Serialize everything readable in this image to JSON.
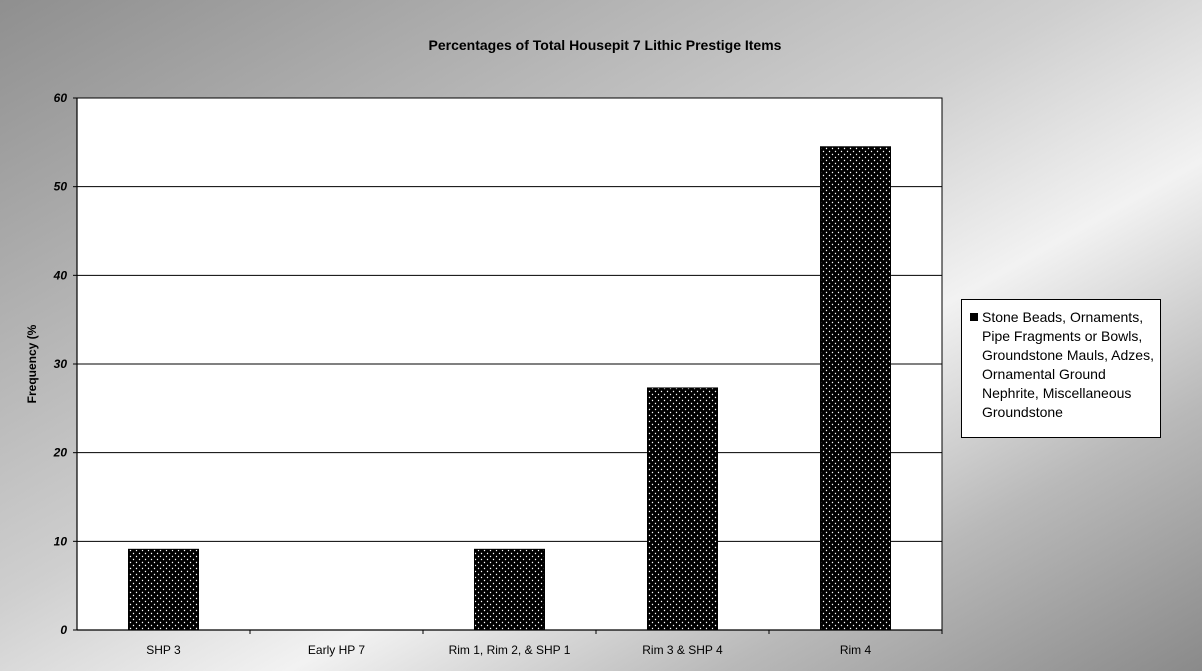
{
  "chart_data": {
    "type": "bar",
    "title": "Percentages of Total Housepit 7 Lithic Prestige Items",
    "xlabel": "",
    "ylabel": "Frequency (%",
    "categories": [
      "SHP 3",
      "Early HP 7",
      "Rim 1, Rim 2, & SHP 1",
      "Rim 3 & SHP 4",
      "Rim 4"
    ],
    "series": [
      {
        "name": "Stone Beads, Ornaments, Pipe Fragments or Bowls, Groundstone Mauls, Adzes, Ornamental Ground Nephrite, Miscellaneous Groundstone",
        "values": [
          9.1,
          0,
          9.1,
          27.3,
          54.5
        ]
      }
    ],
    "ylim": [
      0,
      60
    ],
    "yticks": [
      0,
      10,
      20,
      30,
      40,
      50,
      60
    ],
    "grid": true,
    "legend_position": "right",
    "colors": {
      "bar": "#000000",
      "bar_dots": "#ffffff",
      "gridline": "#000000",
      "plot_background": "#ffffff"
    }
  }
}
